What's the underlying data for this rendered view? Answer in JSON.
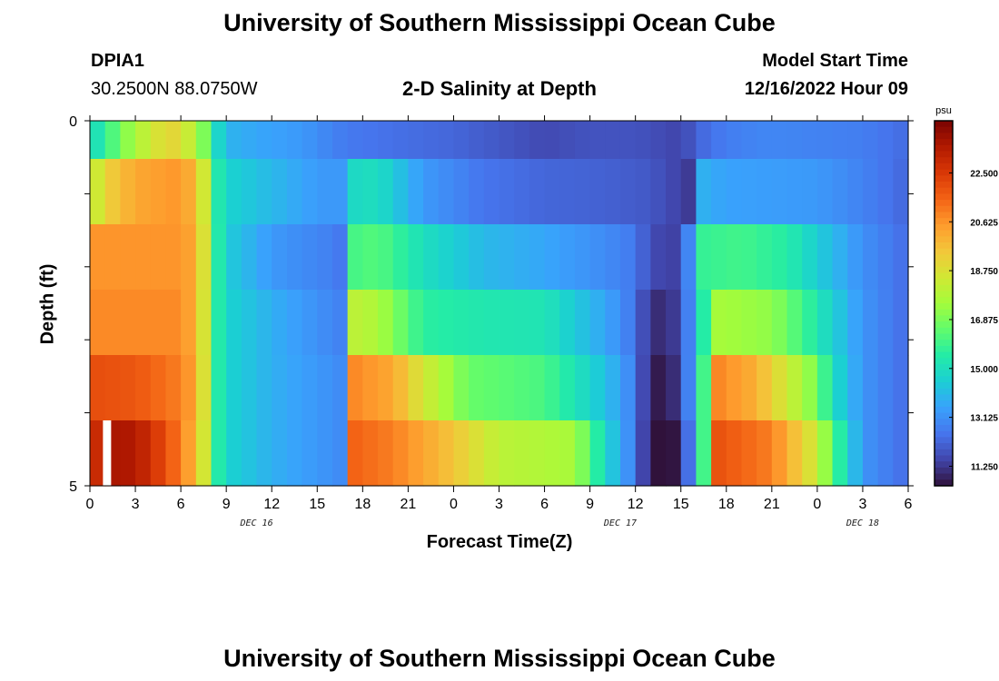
{
  "header": {
    "title": "University of Southern Mississippi Ocean Cube",
    "station_id": "DPIA1",
    "station_coords": "30.2500N  88.0750W",
    "plot_title": "2-D Salinity at Depth",
    "model_start_label": "Model Start Time",
    "model_start_value": "12/16/2022 Hour 09"
  },
  "footer": {
    "title": "University of Southern Mississippi Ocean Cube"
  },
  "chart_data": {
    "type": "heatmap",
    "title": "2-D Salinity at Depth",
    "xlabel": "Forecast Time(Z)",
    "ylabel": "Depth (ft)",
    "x_ticks": [
      "0",
      "3",
      "6",
      "9",
      "12",
      "15",
      "18",
      "21",
      "0",
      "3",
      "6",
      "9",
      "12",
      "15",
      "18",
      "21",
      "0",
      "3",
      "6"
    ],
    "y_ticks": [
      "0",
      "5"
    ],
    "ylim": [
      0,
      5
    ],
    "date_labels": [
      {
        "text": "DEC 16",
        "hour_index": 11
      },
      {
        "text": "DEC 17",
        "hour_index": 35
      },
      {
        "text": "DEC 18",
        "hour_index": 51
      }
    ],
    "hours": 54,
    "colorbar": {
      "unit": "psu",
      "min": 10.5,
      "max": 24.5,
      "ticks": [
        "22.500",
        "20.625",
        "18.750",
        "16.875",
        "15.000",
        "13.125",
        "11.250"
      ],
      "colors": [
        "#30123b",
        "#4145ab",
        "#4675ed",
        "#39a2fc",
        "#1bcfd4",
        "#24eca6",
        "#61fc6c",
        "#a4fc3b",
        "#d1e834",
        "#f3c63a",
        "#fe9b2d",
        "#f36315",
        "#d93806",
        "#b11901",
        "#7a0402"
      ]
    },
    "marker": {
      "hour": 1.1,
      "depth_row": 5
    },
    "depth_rows": [
      {
        "depth": "0",
        "profile": [
          [
            0,
            14.8
          ],
          [
            1,
            15.6
          ],
          [
            2,
            16.8
          ],
          [
            3,
            17.6
          ],
          [
            4,
            18.4
          ],
          [
            5,
            19.0
          ],
          [
            6,
            19.0
          ],
          [
            6.7,
            18.0
          ],
          [
            7.4,
            17.2
          ],
          [
            8.0,
            15.5
          ],
          [
            9.0,
            13.9
          ],
          [
            11.0,
            13.6
          ],
          [
            14.0,
            13.3
          ],
          [
            16.0,
            12.8
          ],
          [
            17.0,
            12.6
          ],
          [
            20.0,
            12.4
          ],
          [
            24.0,
            12.2
          ],
          [
            27.0,
            11.9
          ],
          [
            30.0,
            11.6
          ],
          [
            33.0,
            11.8
          ],
          [
            36.0,
            11.8
          ],
          [
            39.0,
            11.5
          ],
          [
            40.5,
            12.3
          ],
          [
            42.0,
            12.7
          ],
          [
            45.0,
            12.9
          ],
          [
            48.0,
            12.8
          ],
          [
            51.0,
            12.7
          ],
          [
            54.0,
            12.3
          ]
        ]
      },
      {
        "depth": "1",
        "profile": [
          [
            0,
            18.0
          ],
          [
            1.5,
            19.4
          ],
          [
            3,
            20.2
          ],
          [
            6,
            20.6
          ],
          [
            7.2,
            19.5
          ],
          [
            7.8,
            17.5
          ],
          [
            8.4,
            15.4
          ],
          [
            9.2,
            14.6
          ],
          [
            12,
            14.0
          ],
          [
            15.2,
            13.3
          ],
          [
            16.5,
            13.3
          ],
          [
            17.0,
            14.8
          ],
          [
            19,
            15.0
          ],
          [
            22,
            13.3
          ],
          [
            26,
            12.5
          ],
          [
            30,
            12.2
          ],
          [
            34,
            12.1
          ],
          [
            37,
            11.9
          ],
          [
            39.5,
            11.3
          ],
          [
            40.5,
            13.8
          ],
          [
            42,
            13.5
          ],
          [
            48,
            13.3
          ],
          [
            51,
            12.8
          ],
          [
            54,
            12.2
          ]
        ]
      },
      {
        "depth": "2",
        "profile": [
          [
            0,
            20.6
          ],
          [
            6,
            20.6
          ],
          [
            7.2,
            20.0
          ],
          [
            7.8,
            17.5
          ],
          [
            8.4,
            15.5
          ],
          [
            9.2,
            14.4
          ],
          [
            12,
            13.3
          ],
          [
            15.5,
            12.8
          ],
          [
            16.5,
            12.6
          ],
          [
            17.0,
            16.0
          ],
          [
            19,
            16.3
          ],
          [
            22,
            15.0
          ],
          [
            26,
            14.0
          ],
          [
            30,
            13.6
          ],
          [
            34,
            13.0
          ],
          [
            36,
            12.6
          ],
          [
            37,
            11.6
          ],
          [
            39,
            11.4
          ],
          [
            40.5,
            15.8
          ],
          [
            43,
            16.0
          ],
          [
            46,
            15.5
          ],
          [
            48,
            14.5
          ],
          [
            51,
            13.1
          ],
          [
            54,
            12.3
          ]
        ]
      },
      {
        "depth": "3",
        "profile": [
          [
            0,
            20.8
          ],
          [
            6,
            20.8
          ],
          [
            7.2,
            19.8
          ],
          [
            7.8,
            17.5
          ],
          [
            8.4,
            15.5
          ],
          [
            9.2,
            14.6
          ],
          [
            12,
            13.8
          ],
          [
            15.5,
            13.0
          ],
          [
            16.5,
            12.8
          ],
          [
            17.0,
            16.0
          ],
          [
            17.5,
            18.0
          ],
          [
            19,
            17.7
          ],
          [
            22,
            15.6
          ],
          [
            26,
            15.3
          ],
          [
            30,
            15.2
          ],
          [
            34,
            13.6
          ],
          [
            36,
            12.5
          ],
          [
            37,
            10.9
          ],
          [
            39,
            11.4
          ],
          [
            40.5,
            15.5
          ],
          [
            41,
            17.6
          ],
          [
            45,
            17.2
          ],
          [
            47,
            16.0
          ],
          [
            49,
            14.6
          ],
          [
            51,
            13.2
          ],
          [
            54,
            12.3
          ]
        ]
      },
      {
        "depth": "4",
        "profile": [
          [
            0,
            22.0
          ],
          [
            3,
            21.8
          ],
          [
            6,
            21.0
          ],
          [
            7.2,
            20.0
          ],
          [
            7.8,
            17.5
          ],
          [
            8.4,
            15.5
          ],
          [
            9.2,
            14.6
          ],
          [
            12,
            13.8
          ],
          [
            15.5,
            13.2
          ],
          [
            16.5,
            13.0
          ],
          [
            17.0,
            17.5
          ],
          [
            17.5,
            20.8
          ],
          [
            20,
            20.2
          ],
          [
            22,
            18.5
          ],
          [
            25,
            16.6
          ],
          [
            30,
            16.1
          ],
          [
            34,
            14.2
          ],
          [
            36,
            12.7
          ],
          [
            37,
            10.5
          ],
          [
            39,
            11.2
          ],
          [
            40.5,
            16.0
          ],
          [
            41,
            21.0
          ],
          [
            44,
            20.0
          ],
          [
            48,
            16.8
          ],
          [
            49,
            15.0
          ],
          [
            51,
            13.2
          ],
          [
            54,
            12.3
          ]
        ]
      },
      {
        "depth": "5",
        "profile": [
          [
            0,
            22.6
          ],
          [
            1.5,
            23.6
          ],
          [
            3,
            23.5
          ],
          [
            5,
            22.0
          ],
          [
            6,
            21.0
          ],
          [
            7.2,
            19.6
          ],
          [
            7.8,
            17.5
          ],
          [
            8.4,
            15.5
          ],
          [
            9.2,
            14.6
          ],
          [
            12,
            13.8
          ],
          [
            15.5,
            13.2
          ],
          [
            16.5,
            13.0
          ],
          [
            17.0,
            17.5
          ],
          [
            17.5,
            21.5
          ],
          [
            20,
            21.0
          ],
          [
            24,
            19.5
          ],
          [
            27,
            18.0
          ],
          [
            32,
            17.6
          ],
          [
            34,
            14.8
          ],
          [
            36,
            12.6
          ],
          [
            37,
            10.4
          ],
          [
            39,
            10.6
          ],
          [
            40.5,
            16.0
          ],
          [
            41,
            22.0
          ],
          [
            45,
            21.0
          ],
          [
            48,
            18.3
          ],
          [
            49,
            16.3
          ],
          [
            51,
            13.2
          ],
          [
            54,
            12.3
          ]
        ]
      }
    ]
  }
}
